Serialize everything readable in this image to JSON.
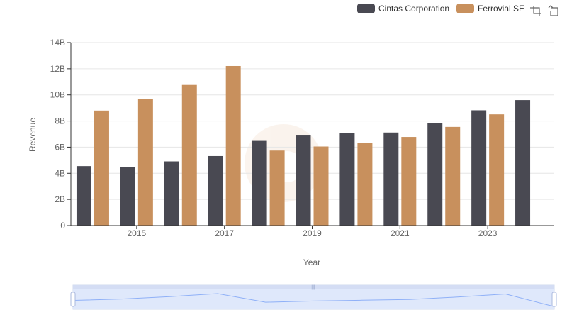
{
  "colors": {
    "cintas": "#494952",
    "ferrovial": "#c8905d",
    "grid": "#e6e6e6",
    "axis": "#333333",
    "zoom_fill": "#dbe5fb",
    "zoom_border": "#aab8de",
    "zoom_line": "#8fb0f7",
    "watermark": "#f7ebe0"
  },
  "toolbar": {
    "zoom_icon": "zoom-select-icon",
    "restore_icon": "restore-icon"
  },
  "chart_data": {
    "type": "bar",
    "title": "",
    "xlabel": "Year",
    "ylabel": "Revenue",
    "x": [
      2014,
      2015,
      2016,
      2017,
      2018,
      2019,
      2020,
      2021,
      2022,
      2023,
      2024
    ],
    "x_tick_labels": [
      "2015",
      "2017",
      "2019",
      "2021",
      "2023"
    ],
    "y_tick_labels": [
      "0",
      "2B",
      "4B",
      "6B",
      "8B",
      "10B",
      "12B",
      "14B"
    ],
    "ylim": [
      0,
      14000000000
    ],
    "grid": true,
    "legend_position": "top-right",
    "series": [
      {
        "name": "Cintas Corporation",
        "values": [
          4550000000,
          4480000000,
          4910000000,
          5320000000,
          6480000000,
          6890000000,
          7080000000,
          7120000000,
          7850000000,
          8820000000,
          9600000000
        ]
      },
      {
        "name": "Ferrovial SE",
        "values": [
          8800000000,
          9700000000,
          10760000000,
          12210000000,
          5740000000,
          6050000000,
          6340000000,
          6780000000,
          7550000000,
          8510000000,
          null
        ]
      }
    ]
  }
}
